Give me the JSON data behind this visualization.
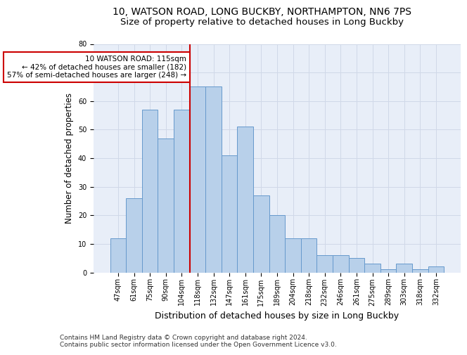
{
  "title1": "10, WATSON ROAD, LONG BUCKBY, NORTHAMPTON, NN6 7PS",
  "title2": "Size of property relative to detached houses in Long Buckby",
  "xlabel": "Distribution of detached houses by size in Long Buckby",
  "ylabel": "Number of detached properties",
  "categories": [
    "47sqm",
    "61sqm",
    "75sqm",
    "90sqm",
    "104sqm",
    "118sqm",
    "132sqm",
    "147sqm",
    "161sqm",
    "175sqm",
    "189sqm",
    "204sqm",
    "218sqm",
    "232sqm",
    "246sqm",
    "261sqm",
    "275sqm",
    "289sqm",
    "303sqm",
    "318sqm",
    "332sqm"
  ],
  "values": [
    12,
    26,
    57,
    47,
    57,
    65,
    65,
    41,
    51,
    27,
    20,
    12,
    12,
    6,
    6,
    5,
    3,
    1,
    3,
    1,
    2
  ],
  "bar_color": "#b8d0ea",
  "bar_edge_color": "#6699cc",
  "vline_index": 5,
  "vline_color": "#cc0000",
  "annotation_text": "10 WATSON ROAD: 115sqm\n← 42% of detached houses are smaller (182)\n57% of semi-detached houses are larger (248) →",
  "annotation_box_color": "#ffffff",
  "annotation_box_edge": "#cc0000",
  "ylim": [
    0,
    80
  ],
  "yticks": [
    0,
    10,
    20,
    30,
    40,
    50,
    60,
    70,
    80
  ],
  "grid_color": "#d0d8e8",
  "bg_color": "#e8eef8",
  "footnote": "Contains HM Land Registry data © Crown copyright and database right 2024.\nContains public sector information licensed under the Open Government Licence v3.0.",
  "title_fontsize": 10,
  "subtitle_fontsize": 9.5,
  "xlabel_fontsize": 9,
  "ylabel_fontsize": 8.5,
  "tick_fontsize": 7,
  "annot_fontsize": 7.5,
  "footnote_fontsize": 6.5
}
